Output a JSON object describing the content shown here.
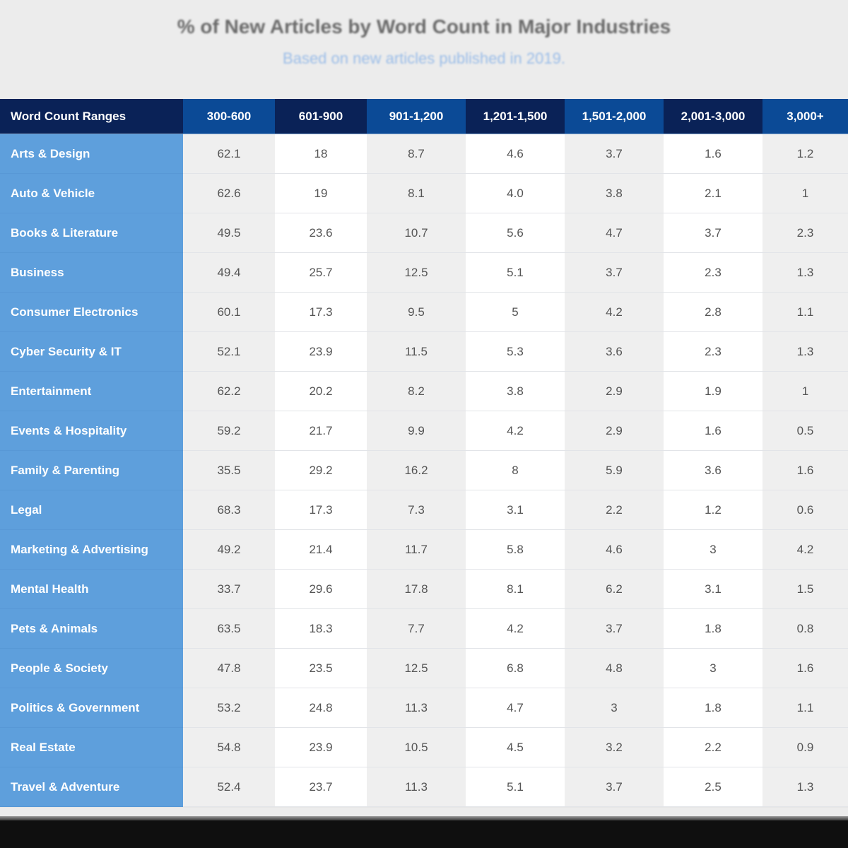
{
  "header": {
    "title": "% of New Articles by Word Count in Major Industries",
    "subtitle": "Based on new articles published in 2019."
  },
  "table": {
    "corner_label": "Word Count Ranges",
    "columns": [
      "300-600",
      "601-900",
      "901-1,200",
      "1,201-1,500",
      "1,501-2,000",
      "2,001-3,000",
      "3,000+"
    ],
    "rows": [
      {
        "label": "Arts & Design",
        "values": [
          "62.1",
          "18",
          "8.7",
          "4.6",
          "3.7",
          "1.6",
          "1.2"
        ]
      },
      {
        "label": "Auto & Vehicle",
        "values": [
          "62.6",
          "19",
          "8.1",
          "4.0",
          "3.8",
          "2.1",
          "1"
        ]
      },
      {
        "label": "Books & Literature",
        "values": [
          "49.5",
          "23.6",
          "10.7",
          "5.6",
          "4.7",
          "3.7",
          "2.3"
        ]
      },
      {
        "label": "Business",
        "values": [
          "49.4",
          "25.7",
          "12.5",
          "5.1",
          "3.7",
          "2.3",
          "1.3"
        ]
      },
      {
        "label": "Consumer Electronics",
        "values": [
          "60.1",
          "17.3",
          "9.5",
          "5",
          "4.2",
          "2.8",
          "1.1"
        ]
      },
      {
        "label": "Cyber Security & IT",
        "values": [
          "52.1",
          "23.9",
          "11.5",
          "5.3",
          "3.6",
          "2.3",
          "1.3"
        ]
      },
      {
        "label": "Entertainment",
        "values": [
          "62.2",
          "20.2",
          "8.2",
          "3.8",
          "2.9",
          "1.9",
          "1"
        ]
      },
      {
        "label": "Events & Hospitality",
        "values": [
          "59.2",
          "21.7",
          "9.9",
          "4.2",
          "2.9",
          "1.6",
          "0.5"
        ]
      },
      {
        "label": "Family & Parenting",
        "values": [
          "35.5",
          "29.2",
          "16.2",
          "8",
          "5.9",
          "3.6",
          "1.6"
        ]
      },
      {
        "label": "Legal",
        "values": [
          "68.3",
          "17.3",
          "7.3",
          "3.1",
          "2.2",
          "1.2",
          "0.6"
        ]
      },
      {
        "label": "Marketing & Advertising",
        "values": [
          "49.2",
          "21.4",
          "11.7",
          "5.8",
          "4.6",
          "3",
          "4.2"
        ]
      },
      {
        "label": "Mental Health",
        "values": [
          "33.7",
          "29.6",
          "17.8",
          "8.1",
          "6.2",
          "3.1",
          "1.5"
        ]
      },
      {
        "label": "Pets & Animals",
        "values": [
          "63.5",
          "18.3",
          "7.7",
          "4.2",
          "3.7",
          "1.8",
          "0.8"
        ]
      },
      {
        "label": "People & Society",
        "values": [
          "47.8",
          "23.5",
          "12.5",
          "6.8",
          "4.8",
          "3",
          "1.6"
        ]
      },
      {
        "label": "Politics & Government",
        "values": [
          "53.2",
          "24.8",
          "11.3",
          "4.7",
          "3",
          "1.8",
          "1.1"
        ]
      },
      {
        "label": "Real Estate",
        "values": [
          "54.8",
          "23.9",
          "10.5",
          "4.5",
          "3.2",
          "2.2",
          "0.9"
        ]
      },
      {
        "label": "Travel & Adventure",
        "values": [
          "52.4",
          "23.7",
          "11.3",
          "5.1",
          "3.7",
          "2.5",
          "1.3"
        ]
      }
    ]
  },
  "colors": {
    "header_dark": "#0a2257",
    "header_blue": "#0b4a96",
    "row_label_bg": "#5e9fdc",
    "cell_shaded": "#efefef",
    "cell_white": "#ffffff",
    "subtitle": "#9bbde8"
  },
  "chart_data": {
    "type": "table",
    "title": "% of New Articles by Word Count in Major Industries",
    "subtitle": "Based on new articles published in 2019.",
    "row_header": "Word Count Ranges",
    "columns": [
      "300-600",
      "601-900",
      "901-1,200",
      "1,201-1,500",
      "1,501-2,000",
      "2,001-3,000",
      "3,000+"
    ],
    "categories": [
      "Arts & Design",
      "Auto & Vehicle",
      "Books & Literature",
      "Business",
      "Consumer Electronics",
      "Cyber Security & IT",
      "Entertainment",
      "Events & Hospitality",
      "Family & Parenting",
      "Legal",
      "Marketing & Advertising",
      "Mental Health",
      "Pets & Animals",
      "People & Society",
      "Politics & Government",
      "Real Estate",
      "Travel & Adventure"
    ],
    "series": [
      {
        "name": "300-600",
        "values": [
          62.1,
          62.6,
          49.5,
          49.4,
          60.1,
          52.1,
          62.2,
          59.2,
          35.5,
          68.3,
          49.2,
          33.7,
          63.5,
          47.8,
          53.2,
          54.8,
          52.4
        ]
      },
      {
        "name": "601-900",
        "values": [
          18,
          19,
          23.6,
          25.7,
          17.3,
          23.9,
          20.2,
          21.7,
          29.2,
          17.3,
          21.4,
          29.6,
          18.3,
          23.5,
          24.8,
          23.9,
          23.7
        ]
      },
      {
        "name": "901-1,200",
        "values": [
          8.7,
          8.1,
          10.7,
          12.5,
          9.5,
          11.5,
          8.2,
          9.9,
          16.2,
          7.3,
          11.7,
          17.8,
          7.7,
          12.5,
          11.3,
          10.5,
          11.3
        ]
      },
      {
        "name": "1,201-1,500",
        "values": [
          4.6,
          4.0,
          5.6,
          5.1,
          5,
          5.3,
          3.8,
          4.2,
          8,
          3.1,
          5.8,
          8.1,
          4.2,
          6.8,
          4.7,
          4.5,
          5.1
        ]
      },
      {
        "name": "1,501-2,000",
        "values": [
          3.7,
          3.8,
          4.7,
          3.7,
          4.2,
          3.6,
          2.9,
          2.9,
          5.9,
          2.2,
          4.6,
          6.2,
          3.7,
          4.8,
          3,
          3.2,
          3.7
        ]
      },
      {
        "name": "2,001-3,000",
        "values": [
          1.6,
          2.1,
          3.7,
          2.3,
          2.8,
          2.3,
          1.9,
          1.6,
          3.6,
          1.2,
          3,
          3.1,
          1.8,
          3,
          1.8,
          2.2,
          2.5
        ]
      },
      {
        "name": "3,000+",
        "values": [
          1.2,
          1,
          2.3,
          1.3,
          1.1,
          1.3,
          1,
          0.5,
          1.6,
          0.6,
          4.2,
          1.5,
          0.8,
          1.6,
          1.1,
          0.9,
          1.3
        ]
      }
    ],
    "unit": "%"
  }
}
